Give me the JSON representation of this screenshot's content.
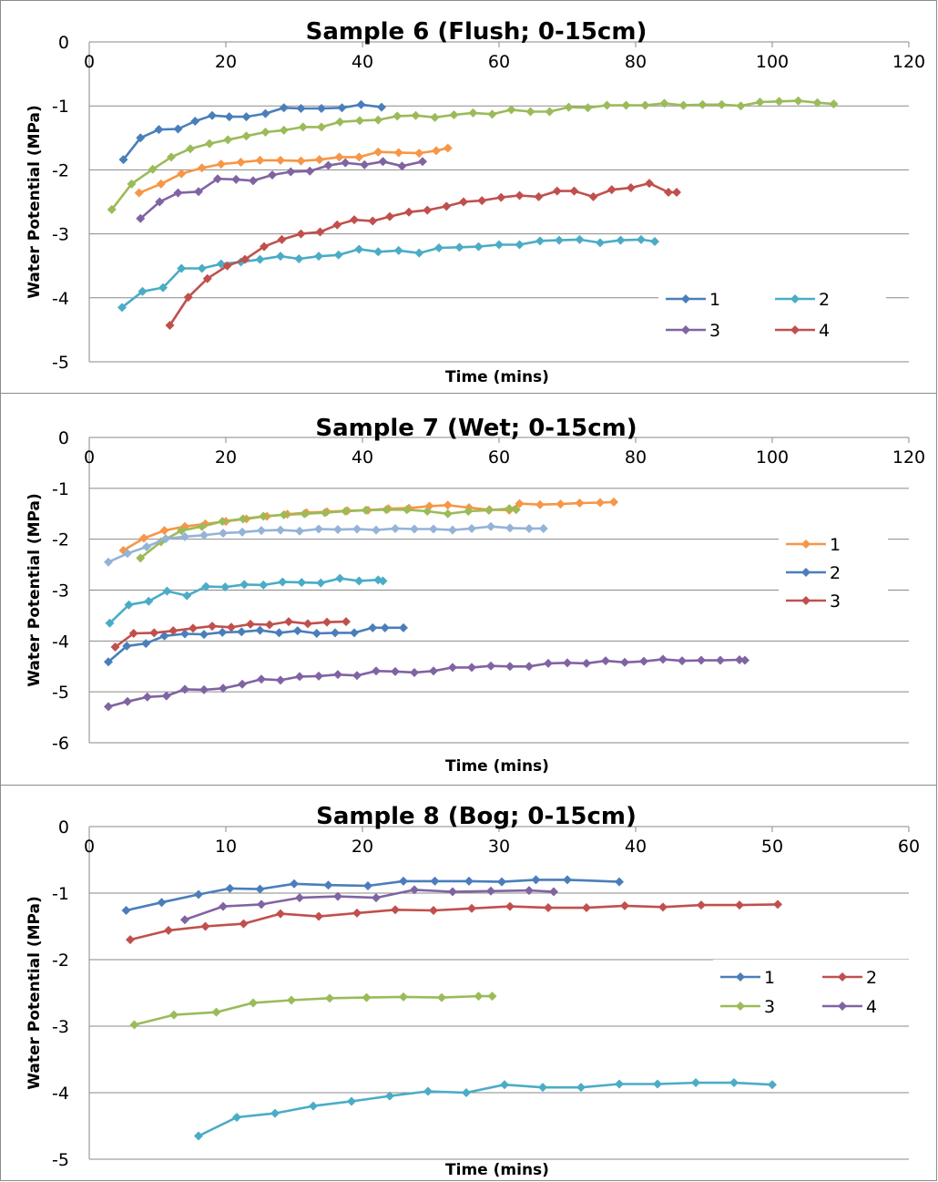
{
  "chart_data": [
    {
      "type": "line",
      "title": "Sample 6 (Flush; 0-15cm)",
      "xlabel": "Time (mins)",
      "ylabel": "Water Potential (MPa)",
      "xlim": [
        0,
        120
      ],
      "ylim": [
        -5,
        0
      ],
      "xticks": [
        "0",
        "20",
        "40",
        "60",
        "80",
        "100",
        "120"
      ],
      "yticks": [
        "0",
        "-1",
        "-2",
        "-3",
        "-4",
        "-5"
      ],
      "grid": true,
      "markers": true,
      "legend": {
        "placement": "bottom-right",
        "columns": 2,
        "entries": [
          "1",
          "2",
          "3",
          "4"
        ]
      },
      "series": [
        {
          "name": "1",
          "color": "#4A7EBB",
          "x": [
            5,
            7.5,
            10.2,
            13,
            15.5,
            18,
            20.5,
            23,
            25.8,
            28.5,
            31,
            34,
            37,
            39.8,
            42.8
          ],
          "y": [
            -1.84,
            -1.5,
            -1.37,
            -1.36,
            -1.24,
            -1.15,
            -1.17,
            -1.17,
            -1.12,
            -1.03,
            -1.04,
            -1.04,
            -1.03,
            -0.98,
            -1.02
          ]
        },
        {
          "name": "2",
          "color": "#4BACC6",
          "x": [
            4.8,
            7.8,
            10.8,
            13.5,
            16.5,
            19.3,
            22.2,
            25,
            28,
            30.7,
            33.6,
            36.5,
            39.5,
            42.3,
            45.3,
            48.3,
            51.2,
            54.2,
            57,
            60,
            63,
            66,
            68.8,
            71.8,
            74.8,
            77.8,
            80.8,
            82.8
          ],
          "y": [
            -4.15,
            -3.9,
            -3.84,
            -3.54,
            -3.54,
            -3.47,
            -3.44,
            -3.4,
            -3.35,
            -3.39,
            -3.35,
            -3.33,
            -3.24,
            -3.28,
            -3.26,
            -3.3,
            -3.22,
            -3.21,
            -3.2,
            -3.17,
            -3.17,
            -3.11,
            -3.1,
            -3.09,
            -3.14,
            -3.1,
            -3.09,
            -3.12
          ]
        },
        {
          "name": "3",
          "color": "#8064A2",
          "x": [
            7.5,
            10.3,
            13,
            16,
            18.8,
            21.5,
            24,
            26.8,
            29.5,
            32.3,
            35,
            37.5,
            40.3,
            43,
            45.8,
            48.8
          ],
          "y": [
            -2.76,
            -2.5,
            -2.36,
            -2.34,
            -2.14,
            -2.15,
            -2.17,
            -2.08,
            -2.03,
            -2.02,
            -1.93,
            -1.89,
            -1.92,
            -1.87,
            -1.94,
            -1.87
          ]
        },
        {
          "name": "4",
          "color": "#C0504D",
          "x": [
            11.8,
            14.5,
            17.3,
            20.2,
            22.8,
            25.6,
            28.2,
            31,
            33.8,
            36.3,
            38.8,
            41.5,
            44,
            46.8,
            49.5,
            52.3,
            54.8,
            57.5,
            60.3,
            63,
            65.8,
            68.5,
            71,
            73.8,
            76.5,
            79.3,
            82,
            84.8,
            86
          ],
          "y": [
            -4.43,
            -3.99,
            -3.7,
            -3.5,
            -3.4,
            -3.2,
            -3.09,
            -3.0,
            -2.97,
            -2.86,
            -2.78,
            -2.8,
            -2.73,
            -2.66,
            -2.63,
            -2.57,
            -2.5,
            -2.48,
            -2.43,
            -2.4,
            -2.42,
            -2.33,
            -2.33,
            -2.42,
            -2.31,
            -2.28,
            -2.21,
            -2.35,
            -2.35
          ]
        },
        {
          "name": "",
          "color": "#F79646",
          "x": [
            7.3,
            10.5,
            13.5,
            16.5,
            19.3,
            22.2,
            25,
            28,
            31,
            33.7,
            36.6,
            39.5,
            42.3,
            45.3,
            48.3,
            50.8,
            52.5
          ],
          "y": [
            -2.36,
            -2.22,
            -2.06,
            -1.97,
            -1.91,
            -1.88,
            -1.85,
            -1.85,
            -1.86,
            -1.84,
            -1.8,
            -1.8,
            -1.72,
            -1.73,
            -1.74,
            -1.7,
            -1.66
          ]
        },
        {
          "name": "",
          "color": "#9BBB59",
          "x": [
            3.3,
            6.2,
            9.3,
            12,
            14.8,
            17.6,
            20.3,
            23,
            25.8,
            28.5,
            31.3,
            34,
            36.7,
            39.6,
            42.3,
            45.1,
            47.8,
            50.6,
            53.4,
            56.2,
            59,
            61.8,
            64.6,
            67.4,
            70.2,
            73,
            75.8,
            78.6,
            81.4,
            84.2,
            87,
            89.8,
            92.6,
            95.4,
            98.2,
            101,
            103.8,
            106.6,
            109
          ],
          "y": [
            -2.62,
            -2.22,
            -1.99,
            -1.8,
            -1.67,
            -1.59,
            -1.53,
            -1.47,
            -1.41,
            -1.38,
            -1.33,
            -1.33,
            -1.25,
            -1.23,
            -1.22,
            -1.16,
            -1.15,
            -1.18,
            -1.14,
            -1.11,
            -1.13,
            -1.06,
            -1.09,
            -1.09,
            -1.02,
            -1.03,
            -0.99,
            -0.99,
            -0.99,
            -0.96,
            -0.99,
            -0.98,
            -0.98,
            -1.0,
            -0.94,
            -0.93,
            -0.92,
            -0.95,
            -0.97
          ]
        }
      ]
    },
    {
      "type": "line",
      "title": "Sample 7 (Wet; 0-15cm)",
      "xlabel": "Time (mins)",
      "ylabel": "Water Potential (MPa)",
      "xlim": [
        0,
        120
      ],
      "ylim": [
        -6,
        0
      ],
      "xticks": [
        "0",
        "20",
        "40",
        "60",
        "80",
        "100",
        "120"
      ],
      "yticks": [
        "0",
        "-1",
        "-2",
        "-3",
        "-4",
        "-5",
        "-6"
      ],
      "grid": true,
      "markers": true,
      "legend": {
        "placement": "right",
        "columns": 1,
        "entries": [
          "1",
          "2",
          "3"
        ]
      },
      "series": [
        {
          "name": "1",
          "color": "#F79646",
          "x": [
            5,
            8,
            11,
            14,
            17,
            20,
            23,
            26,
            29,
            31.8,
            34.8,
            37.8,
            40.8,
            43.8,
            46.8,
            49.8,
            52.5,
            55.6,
            58.6,
            61.5,
            63,
            66,
            69,
            71.8,
            74.8,
            76.8
          ],
          "y": [
            -2.22,
            -1.98,
            -1.83,
            -1.75,
            -1.7,
            -1.65,
            -1.6,
            -1.55,
            -1.51,
            -1.48,
            -1.46,
            -1.44,
            -1.43,
            -1.4,
            -1.39,
            -1.35,
            -1.33,
            -1.38,
            -1.42,
            -1.43,
            -1.3,
            -1.32,
            -1.31,
            -1.29,
            -1.28,
            -1.27
          ]
        },
        {
          "name": "2",
          "color": "#4A7EBB",
          "x": [
            2.8,
            5.5,
            8.3,
            11,
            14,
            16.8,
            19.5,
            22.3,
            25,
            27.8,
            30.5,
            33.3,
            36,
            38.8,
            41.5,
            43.3,
            46
          ],
          "y": [
            -4.41,
            -4.1,
            -4.05,
            -3.9,
            -3.86,
            -3.87,
            -3.83,
            -3.82,
            -3.79,
            -3.84,
            -3.8,
            -3.85,
            -3.84,
            -3.84,
            -3.74,
            -3.74,
            -3.74
          ]
        },
        {
          "name": "3",
          "color": "#C0504D",
          "x": [
            3.8,
            6.5,
            9.5,
            12.3,
            15.2,
            18,
            20.8,
            23.6,
            26.4,
            29.2,
            32,
            34.8,
            37.6
          ],
          "y": [
            -4.12,
            -3.85,
            -3.84,
            -3.8,
            -3.75,
            -3.71,
            -3.73,
            -3.67,
            -3.68,
            -3.62,
            -3.66,
            -3.63,
            -3.62
          ]
        },
        {
          "name": "",
          "color": "#9BBB59",
          "x": [
            7.5,
            10.5,
            13.5,
            16.5,
            19.5,
            22.5,
            25.5,
            28.5,
            31.5,
            34.5,
            37.5,
            40.5,
            43.5,
            46.5,
            49.5,
            52.5,
            55.5,
            58.5,
            61.5,
            62.5
          ],
          "y": [
            -2.37,
            -2.05,
            -1.83,
            -1.75,
            -1.65,
            -1.6,
            -1.55,
            -1.52,
            -1.5,
            -1.48,
            -1.45,
            -1.43,
            -1.42,
            -1.42,
            -1.45,
            -1.5,
            -1.45,
            -1.43,
            -1.4,
            -1.42
          ]
        },
        {
          "name": "",
          "color": "#95B3D7",
          "x": [
            2.8,
            5.6,
            8.4,
            11.2,
            14,
            16.8,
            19.6,
            22.4,
            25.2,
            28,
            30.8,
            33.6,
            36.4,
            39.2,
            42,
            44.8,
            47.6,
            50.4,
            53.2,
            56,
            58.8,
            61.6,
            64.4,
            66.5
          ],
          "y": [
            -2.45,
            -2.28,
            -2.15,
            -1.99,
            -1.95,
            -1.92,
            -1.88,
            -1.86,
            -1.83,
            -1.82,
            -1.84,
            -1.8,
            -1.81,
            -1.8,
            -1.82,
            -1.79,
            -1.8,
            -1.8,
            -1.82,
            -1.79,
            -1.75,
            -1.78,
            -1.79,
            -1.79
          ]
        },
        {
          "name": "",
          "color": "#4BACC6",
          "x": [
            3,
            5.8,
            8.7,
            11.4,
            14.3,
            17.1,
            19.9,
            22.7,
            25.5,
            28.3,
            31.1,
            33.9,
            36.7,
            39.5,
            42.3,
            43
          ],
          "y": [
            -3.65,
            -3.29,
            -3.22,
            -3.02,
            -3.11,
            -2.93,
            -2.94,
            -2.89,
            -2.9,
            -2.84,
            -2.85,
            -2.86,
            -2.77,
            -2.82,
            -2.8,
            -2.82
          ]
        },
        {
          "name": "",
          "color": "#8064A2",
          "x": [
            2.8,
            5.6,
            8.5,
            11.3,
            14,
            16.8,
            19.6,
            22.4,
            25.2,
            28,
            30.8,
            33.6,
            36.4,
            39.2,
            42,
            44.8,
            47.6,
            50.4,
            53.2,
            56,
            58.8,
            61.6,
            64.4,
            67.2,
            70,
            72.8,
            75.6,
            78.4,
            81.2,
            84,
            86.8,
            89.6,
            92.4,
            95.2,
            96
          ],
          "y": [
            -5.29,
            -5.19,
            -5.1,
            -5.08,
            -4.95,
            -4.96,
            -4.93,
            -4.85,
            -4.75,
            -4.77,
            -4.7,
            -4.69,
            -4.66,
            -4.68,
            -4.59,
            -4.6,
            -4.62,
            -4.59,
            -4.52,
            -4.52,
            -4.49,
            -4.5,
            -4.5,
            -4.44,
            -4.43,
            -4.44,
            -4.39,
            -4.42,
            -4.4,
            -4.36,
            -4.39,
            -4.38,
            -4.38,
            -4.37,
            -4.38
          ]
        }
      ]
    },
    {
      "type": "line",
      "title": "Sample 8 (Bog; 0-15cm)",
      "xlabel": "Time (mins)",
      "ylabel": "Water Potential (MPa)",
      "xlim": [
        0,
        60
      ],
      "ylim": [
        -5,
        0
      ],
      "xticks": [
        "0",
        "10",
        "20",
        "30",
        "40",
        "50",
        "60"
      ],
      "yticks": [
        "0",
        "-1",
        "-2",
        "-3",
        "-4",
        "-5"
      ],
      "grid": true,
      "markers": true,
      "legend": {
        "placement": "bottom-right",
        "columns": 2,
        "entries": [
          "1",
          "2",
          "3",
          "4"
        ]
      },
      "series": [
        {
          "name": "1",
          "color": "#4A7EBB",
          "x": [
            2.7,
            5.3,
            8,
            10.3,
            12.5,
            15,
            17.5,
            20.4,
            23,
            25.3,
            27.8,
            30.2,
            32.7,
            35,
            38.8
          ],
          "y": [
            -1.26,
            -1.14,
            -1.02,
            -0.93,
            -0.94,
            -0.86,
            -0.88,
            -0.89,
            -0.82,
            -0.82,
            -0.82,
            -0.83,
            -0.8,
            -0.8,
            -0.83
          ]
        },
        {
          "name": "2",
          "color": "#C0504D",
          "x": [
            3,
            5.8,
            8.5,
            11.3,
            14,
            16.8,
            19.6,
            22.4,
            25.2,
            28,
            30.8,
            33.6,
            36.4,
            39.2,
            42,
            44.8,
            47.6,
            50.4
          ],
          "y": [
            -1.7,
            -1.56,
            -1.5,
            -1.46,
            -1.31,
            -1.35,
            -1.3,
            -1.25,
            -1.26,
            -1.23,
            -1.2,
            -1.22,
            -1.22,
            -1.19,
            -1.21,
            -1.18,
            -1.18,
            -1.17
          ]
        },
        {
          "name": "3",
          "color": "#9BBB59",
          "x": [
            3.3,
            6.2,
            9.3,
            12,
            14.8,
            17.6,
            20.3,
            23,
            25.8,
            28.5,
            29.5
          ],
          "y": [
            -2.98,
            -2.83,
            -2.79,
            -2.65,
            -2.61,
            -2.58,
            -2.57,
            -2.56,
            -2.57,
            -2.55,
            -2.55
          ]
        },
        {
          "name": "4",
          "color": "#8064A2",
          "x": [
            7,
            9.8,
            12.6,
            15.4,
            18.2,
            21,
            23.8,
            26.6,
            29.4,
            32.2,
            34
          ],
          "y": [
            -1.4,
            -1.2,
            -1.17,
            -1.07,
            -1.05,
            -1.07,
            -0.95,
            -0.98,
            -0.97,
            -0.96,
            -0.98
          ]
        },
        {
          "name": "",
          "color": "#4BACC6",
          "x": [
            8,
            10.8,
            13.6,
            16.4,
            19.2,
            22,
            24.8,
            27.6,
            30.4,
            33.2,
            36,
            38.8,
            41.6,
            44.4,
            47.2,
            50
          ],
          "y": [
            -4.65,
            -4.37,
            -4.31,
            -4.2,
            -4.13,
            -4.05,
            -3.98,
            -4.0,
            -3.88,
            -3.92,
            -3.92,
            -3.87,
            -3.87,
            -3.85,
            -3.85,
            -3.88
          ]
        }
      ]
    }
  ]
}
